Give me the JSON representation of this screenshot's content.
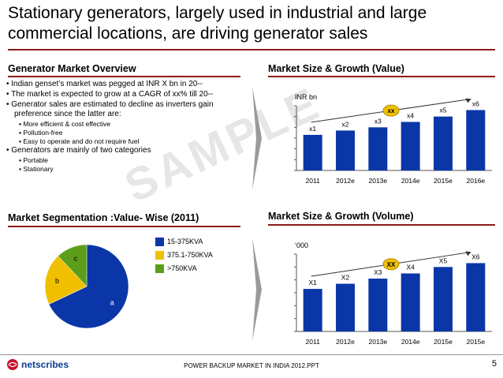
{
  "page": {
    "title": "Stationary generators, largely used in industrial and large commercial locations, are driving generator sales",
    "watermark": "SAMPLE",
    "footer": "POWER BACKUP MARKET IN INDIA 2012.PPT",
    "page_number": "5",
    "logo_text": "netscribes"
  },
  "overview": {
    "heading": "Generator Market Overview",
    "bullets": [
      {
        "text": "• Indian genset’s market was pegged at INR X bn in 20--",
        "sub": []
      },
      {
        "text": "• The market is expected to grow at a CAGR of xx% till 20--",
        "sub": []
      },
      {
        "text": "• Generator sales are estimated to decline as inverters gain preference since the latter are:",
        "sub": [
          "▪ More efficient & cost effective",
          "▪ Pollution-free",
          "▪ Easy to operate and do not require fuel"
        ]
      },
      {
        "text": "• Generators are mainly of two categories",
        "sub": [
          "▪ Portable",
          "▪ Stationary"
        ]
      }
    ]
  },
  "segmentation": {
    "heading": "Market Segmentation :Value- Wise (2011)"
  },
  "value_chart": {
    "heading": "Market Size & Growth (Value)"
  },
  "volume_chart": {
    "heading": "Market Size & Growth (Volume)"
  },
  "colors": {
    "bar": "#0a36a8",
    "accent_rule": "#8c1d18",
    "cagr_fill": "#f0c000",
    "pie_a": "#0a36a8",
    "pie_b": "#f0c000",
    "pie_c": "#5a9e1a"
  },
  "chart_data": [
    {
      "type": "bar",
      "title": "Market Size & Growth (Value)",
      "ylabel": "INR bn",
      "categories": [
        "2011",
        "2012e",
        "2013e",
        "2014e",
        "2015e",
        "2016e"
      ],
      "values": [
        3.3,
        3.7,
        4.0,
        4.5,
        5.0,
        5.6
      ],
      "labels": [
        "x1",
        "x2",
        "x3",
        "x4",
        "x5",
        "x6"
      ],
      "annotation": "xx",
      "ylim": [
        0,
        6
      ]
    },
    {
      "type": "bar",
      "title": "Market Size & Growth (Volume)",
      "ylabel": "‘000",
      "categories": [
        "2011",
        "2012e",
        "2013e",
        "2014e",
        "2015e",
        "2015e"
      ],
      "values": [
        3.3,
        3.7,
        4.1,
        4.5,
        5.0,
        5.3
      ],
      "labels": [
        "X1",
        "X2",
        "X3",
        "X4",
        "X5",
        "X6"
      ],
      "annotation": "XX",
      "ylim": [
        0,
        6
      ]
    },
    {
      "type": "pie",
      "title": "Market Segmentation :Value- Wise (2011)",
      "slices": [
        {
          "label": "a",
          "legend": "15-375KVA",
          "value": 68
        },
        {
          "label": "b",
          "legend": "375.1-750KVA",
          "value": 20
        },
        {
          "label": "c",
          "legend": ">750KVA",
          "value": 12
        }
      ]
    }
  ]
}
